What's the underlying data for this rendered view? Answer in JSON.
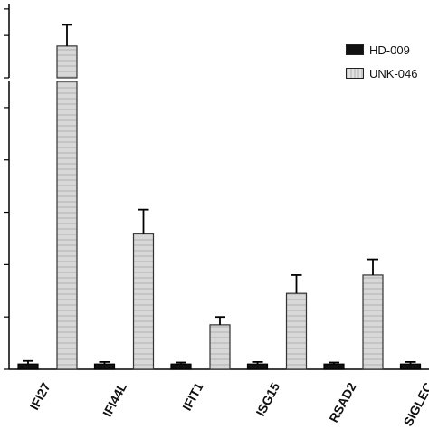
{
  "chart_data": {
    "type": "bar",
    "categories": [
      "IFI27",
      "IFI44L",
      "IFIT1",
      "ISG15",
      "RSAD2",
      "SIGLEC"
    ],
    "series": [
      {
        "name": "HD-009",
        "color": "#111111",
        "values": [
          1,
          1,
          1,
          1,
          1,
          1
        ],
        "errors": [
          0.6,
          0.4,
          0.3,
          0.4,
          0.3,
          0.4
        ]
      },
      {
        "name": "UNK-046",
        "color": "#d4d4d4",
        "values": [
          58,
          26,
          8.5,
          14.5,
          18,
          null
        ],
        "errors": [
          2,
          4.5,
          1.5,
          3.5,
          3,
          null
        ]
      }
    ],
    "axis_break": {
      "lower_max": 55,
      "upper_min": 55,
      "upper_max": 62
    },
    "ylim": [
      0,
      55
    ],
    "grid": false,
    "legend_position": "top-right"
  }
}
